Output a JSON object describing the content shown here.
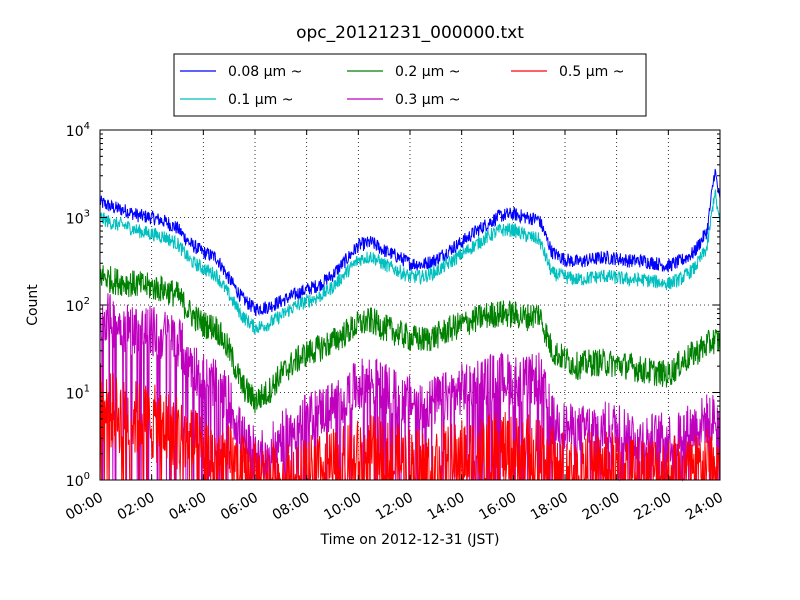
{
  "chart_data": {
    "type": "line",
    "title": "opc_20121231_000000.txt",
    "xlabel": "Time on 2012-12-31 (JST)",
    "ylabel": "Count",
    "x_ticks": [
      "00:00",
      "02:00",
      "04:00",
      "06:00",
      "08:00",
      "10:00",
      "12:00",
      "14:00",
      "16:00",
      "18:00",
      "20:00",
      "22:00",
      "24:00"
    ],
    "y_scale": "log",
    "y_ticks": [
      {
        "base": "10",
        "exp": "0"
      },
      {
        "base": "10",
        "exp": "1"
      },
      {
        "base": "10",
        "exp": "2"
      },
      {
        "base": "10",
        "exp": "3"
      },
      {
        "base": "10",
        "exp": "4"
      }
    ],
    "xlim_hours": [
      0,
      24
    ],
    "ylim": [
      1,
      10000
    ],
    "grid": true,
    "legend_placement": "top-center",
    "time_hours": [
      0,
      0.5,
      1,
      1.5,
      2,
      2.5,
      3,
      3.5,
      4,
      4.5,
      5,
      5.5,
      6,
      6.5,
      7,
      7.5,
      8,
      8.5,
      9,
      9.5,
      10,
      10.5,
      11,
      11.5,
      12,
      12.5,
      13,
      13.5,
      14,
      14.5,
      15,
      15.5,
      16,
      16.5,
      17,
      17.5,
      18,
      18.5,
      19,
      19.5,
      20,
      20.5,
      21,
      21.5,
      22,
      22.5,
      23,
      23.5,
      23.8,
      24
    ],
    "series": [
      {
        "name": "0.08 μm ~",
        "color": "#0000ff",
        "values": [
          1500,
          1300,
          1200,
          1050,
          1000,
          900,
          750,
          500,
          400,
          350,
          200,
          120,
          90,
          95,
          110,
          130,
          150,
          170,
          220,
          320,
          480,
          520,
          420,
          360,
          300,
          290,
          330,
          420,
          520,
          680,
          850,
          1050,
          1100,
          1000,
          950,
          400,
          330,
          310,
          330,
          350,
          340,
          320,
          320,
          300,
          280,
          320,
          400,
          700,
          3500,
          1500
        ]
      },
      {
        "name": "0.1 μm ~",
        "color": "#00bfbf",
        "values": [
          1000,
          850,
          800,
          700,
          650,
          600,
          500,
          320,
          260,
          220,
          130,
          75,
          55,
          60,
          75,
          95,
          110,
          125,
          160,
          230,
          330,
          360,
          290,
          250,
          210,
          210,
          240,
          300,
          380,
          480,
          600,
          720,
          720,
          620,
          560,
          230,
          210,
          195,
          205,
          215,
          205,
          195,
          195,
          185,
          175,
          200,
          260,
          450,
          2000,
          800
        ]
      },
      {
        "name": "0.2 μm ~",
        "color": "#008000",
        "values": [
          220,
          190,
          180,
          170,
          160,
          150,
          130,
          80,
          60,
          55,
          30,
          12,
          8,
          10,
          16,
          22,
          28,
          32,
          38,
          48,
          60,
          66,
          55,
          48,
          42,
          40,
          44,
          52,
          60,
          68,
          76,
          80,
          78,
          72,
          80,
          30,
          24,
          20,
          22,
          22,
          21,
          20,
          18,
          17,
          16,
          22,
          28,
          35,
          40,
          38
        ]
      },
      {
        "name": "0.3 μm ~",
        "color": "#bf00bf",
        "values": [
          80,
          65,
          55,
          52,
          50,
          45,
          40,
          22,
          15,
          13,
          8,
          3,
          2,
          2,
          3,
          4,
          5,
          6,
          7,
          9,
          12,
          14,
          11,
          9,
          8,
          7,
          8,
          9,
          11,
          13,
          14,
          15,
          14,
          13,
          15,
          5,
          4,
          3.5,
          4,
          4,
          4,
          3.5,
          3,
          3,
          3,
          3.5,
          4,
          5,
          5,
          6
        ]
      },
      {
        "name": "0.5 μm ~",
        "color": "#ff0000",
        "values": [
          8,
          6,
          5,
          5,
          4.5,
          4,
          3.5,
          2.5,
          2,
          1.8,
          1.5,
          1.2,
          1,
          1,
          1,
          1,
          1.2,
          1.2,
          1.4,
          1.5,
          1.8,
          2,
          1.8,
          1.6,
          1.5,
          1.4,
          1.5,
          1.6,
          1.8,
          2,
          2,
          2.2,
          2,
          2,
          2.2,
          1.5,
          1.3,
          1.2,
          1.3,
          1.3,
          1.3,
          1.2,
          1.2,
          1.2,
          1.2,
          1.3,
          1.3,
          1.4,
          1.5,
          1.5
        ]
      }
    ]
  }
}
